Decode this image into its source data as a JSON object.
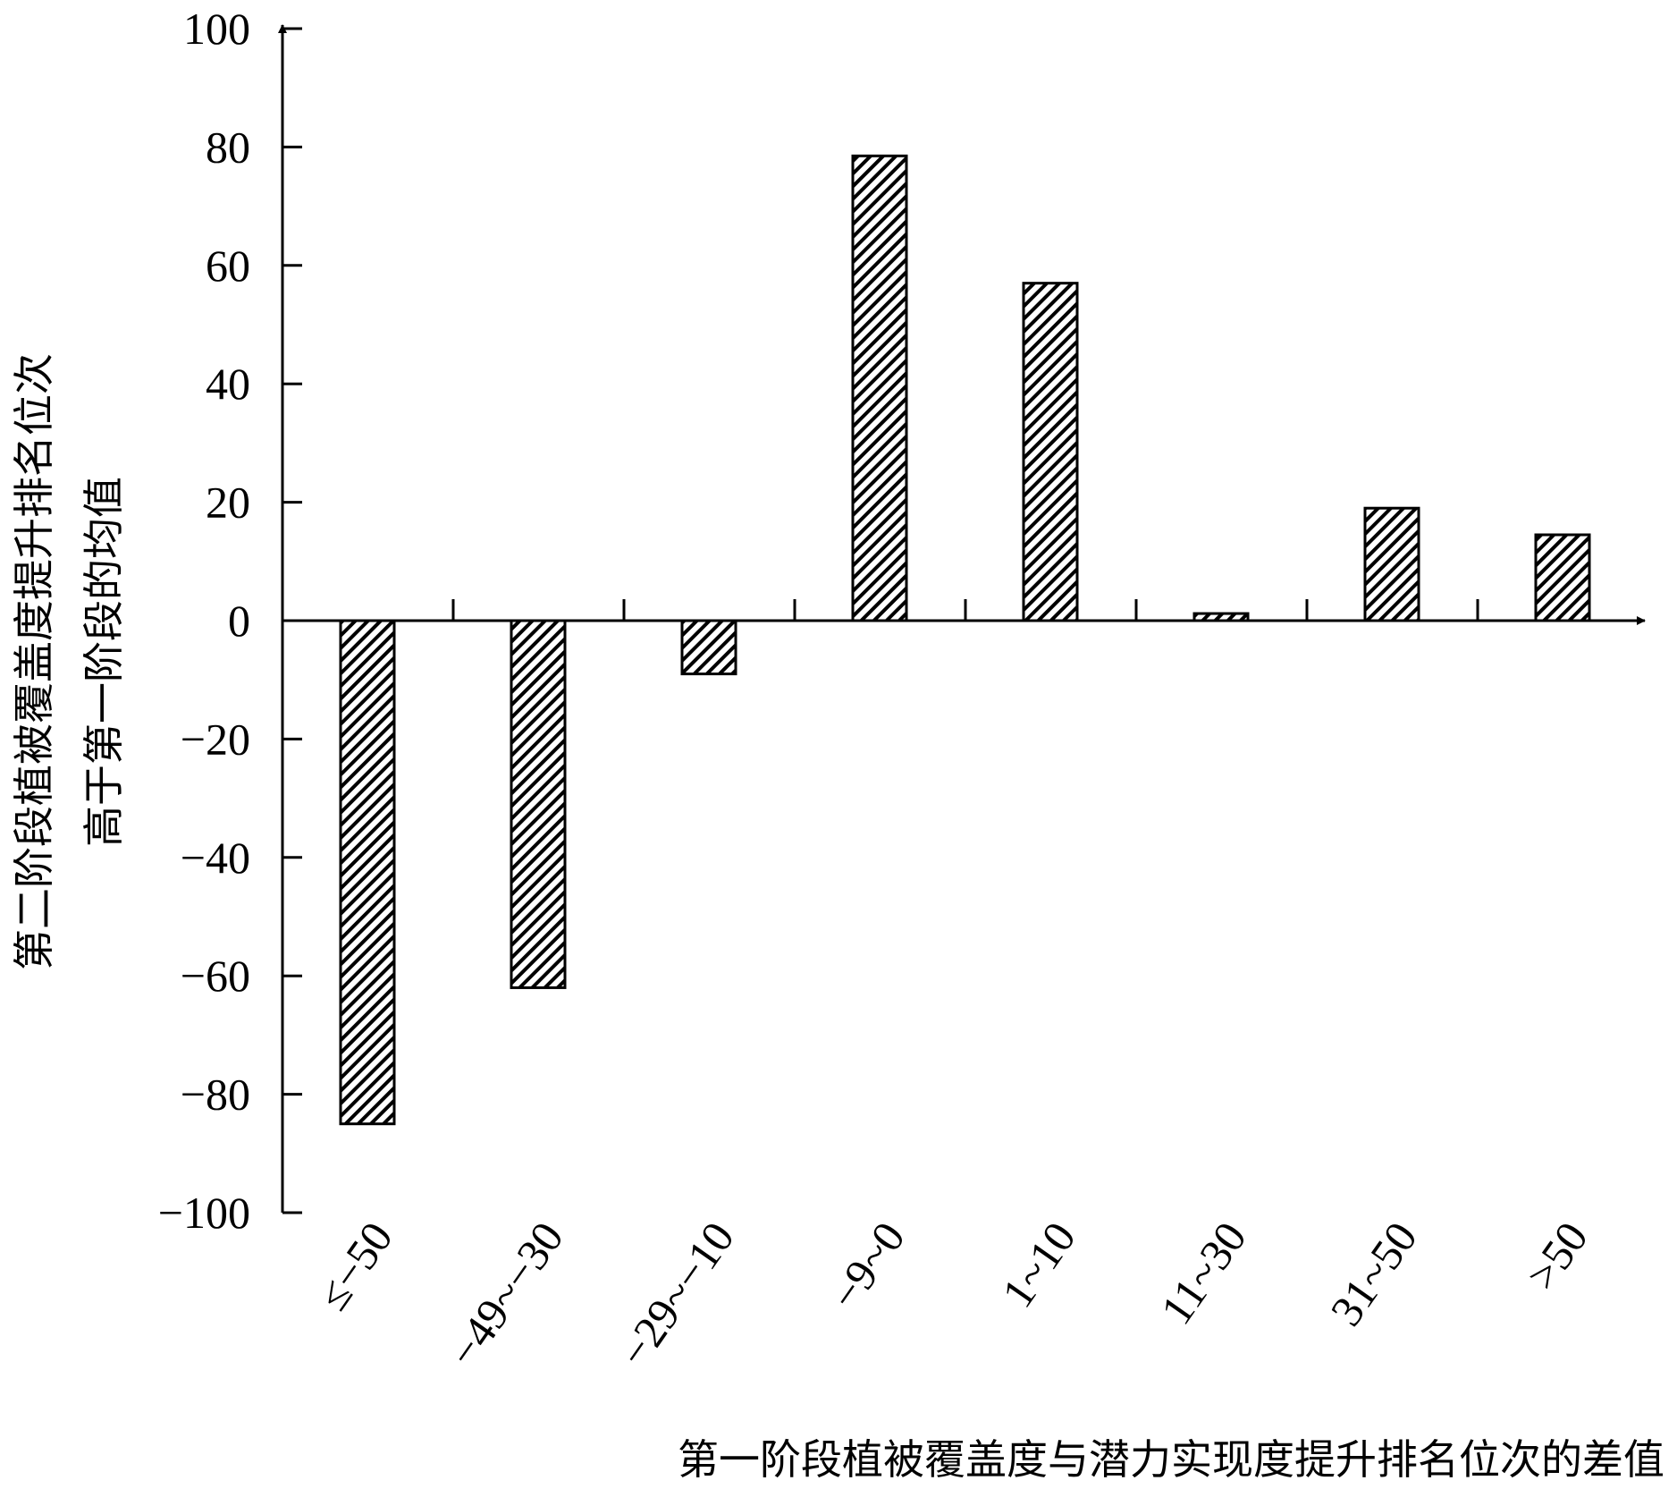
{
  "chart_data": {
    "type": "bar",
    "categories": [
      "≤−50",
      "−49~−30",
      "−29~−10",
      "−9~0",
      "1~10",
      "11~30",
      "31~50",
      ">50"
    ],
    "values": [
      -85,
      -62,
      -9,
      78.5,
      57,
      1.2,
      19,
      14.5
    ],
    "xlabel": "第一阶段植被覆盖度与潜力实现度提升排名位次的差值",
    "ylabel_lines": [
      "第二阶段植被覆盖度提升排名位次",
      "高于第一阶段的均值"
    ],
    "ylim": [
      -100,
      100
    ],
    "yticks": [
      100,
      80,
      60,
      40,
      20,
      0,
      -20,
      -40,
      -60,
      -80,
      -100
    ],
    "ytick_labels": [
      "100",
      "80",
      "60",
      "40",
      "20",
      "0",
      "−20",
      "−40",
      "−60",
      "−80",
      "−100"
    ],
    "bar_fill": "diagonal-hatch",
    "grid": false,
    "colors": {
      "ink": "#000000",
      "background": "#ffffff"
    }
  }
}
